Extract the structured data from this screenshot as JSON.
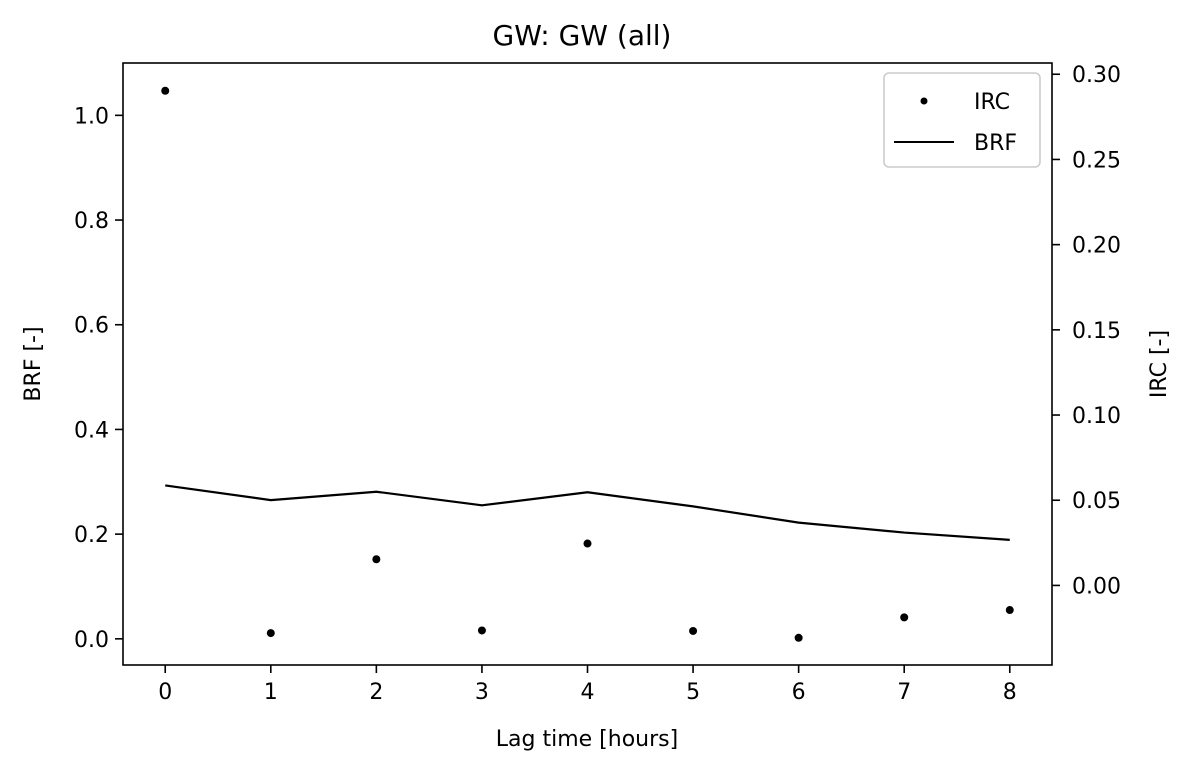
{
  "chart_data": {
    "type": "line",
    "title": "GW: GW (all)",
    "xlabel": "Lag time [hours]",
    "ylabel": "BRF [-]",
    "y2label": "IRC [-]",
    "xlim": [
      -0.4,
      8.4
    ],
    "ylim": [
      -0.05,
      1.1
    ],
    "y2lim": [
      -0.0467,
      0.3066
    ],
    "x_ticks": [
      0,
      1,
      2,
      3,
      4,
      5,
      6,
      7,
      8
    ],
    "y_ticks": [
      0.0,
      0.2,
      0.4,
      0.6,
      0.8,
      1.0
    ],
    "y_tick_labels": [
      "0.0",
      "0.2",
      "0.4",
      "0.6",
      "0.8",
      "1.0"
    ],
    "y2_ticks": [
      0.0,
      0.05,
      0.1,
      0.15,
      0.2,
      0.25,
      0.3
    ],
    "y2_tick_labels": [
      "0.00",
      "0.05",
      "0.10",
      "0.15",
      "0.20",
      "0.25",
      "0.30"
    ],
    "grid": false,
    "legend_position": "top-right",
    "series": [
      {
        "name": "IRC",
        "kind": "scatter",
        "axis": "left",
        "color": "#000000",
        "x": [
          0,
          1,
          2,
          3,
          4,
          5,
          6,
          7,
          8
        ],
        "values": [
          1.047,
          0.011,
          0.152,
          0.016,
          0.182,
          0.015,
          0.002,
          0.041,
          0.055
        ]
      },
      {
        "name": "BRF",
        "kind": "line",
        "axis": "left",
        "color": "#000000",
        "x": [
          0,
          1,
          2,
          3,
          4,
          5,
          6,
          7,
          8
        ],
        "values": [
          0.293,
          0.265,
          0.281,
          0.255,
          0.28,
          0.253,
          0.222,
          0.203,
          0.189
        ]
      }
    ]
  }
}
